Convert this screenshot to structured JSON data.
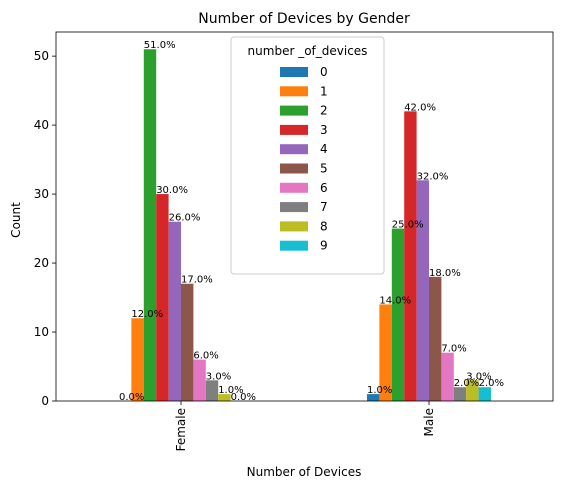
{
  "chart_data": {
    "type": "bar",
    "title": "Number of Devices by Gender",
    "xlabel": "Number of Devices",
    "ylabel": "Count",
    "categories": [
      "Female",
      "Male"
    ],
    "ylim": [
      0,
      53.5
    ],
    "yticks": [
      0,
      10,
      20,
      30,
      40,
      50
    ],
    "grid": false,
    "legend": {
      "title": "number _of_devices",
      "placement": "upper center"
    },
    "series": [
      {
        "name": "0",
        "color": "#1f77b4",
        "values": [
          0,
          1
        ],
        "labels": [
          "0.0%",
          "1.0%"
        ]
      },
      {
        "name": "1",
        "color": "#ff7f0e",
        "values": [
          12,
          14
        ],
        "labels": [
          "12.0%",
          "14.0%"
        ]
      },
      {
        "name": "2",
        "color": "#2ca02c",
        "values": [
          51,
          25
        ],
        "labels": [
          "51.0%",
          "25.0%"
        ]
      },
      {
        "name": "3",
        "color": "#d62728",
        "values": [
          30,
          42
        ],
        "labels": [
          "30.0%",
          "42.0%"
        ]
      },
      {
        "name": "4",
        "color": "#9467bd",
        "values": [
          26,
          32
        ],
        "labels": [
          "26.0%",
          "32.0%"
        ]
      },
      {
        "name": "5",
        "color": "#8c564b",
        "values": [
          17,
          18
        ],
        "labels": [
          "17.0%",
          "18.0%"
        ]
      },
      {
        "name": "6",
        "color": "#e377c2",
        "values": [
          6,
          7
        ],
        "labels": [
          "6.0%",
          "7.0%"
        ]
      },
      {
        "name": "7",
        "color": "#7f7f7f",
        "values": [
          3,
          2
        ],
        "labels": [
          "3.0%",
          "2.0%"
        ]
      },
      {
        "name": "8",
        "color": "#bcbd22",
        "values": [
          1,
          3
        ],
        "labels": [
          "1.0%",
          "3.0%"
        ]
      },
      {
        "name": "9",
        "color": "#17becf",
        "values": [
          0,
          2
        ],
        "labels": [
          "0.0%",
          "2.0%"
        ]
      }
    ]
  }
}
